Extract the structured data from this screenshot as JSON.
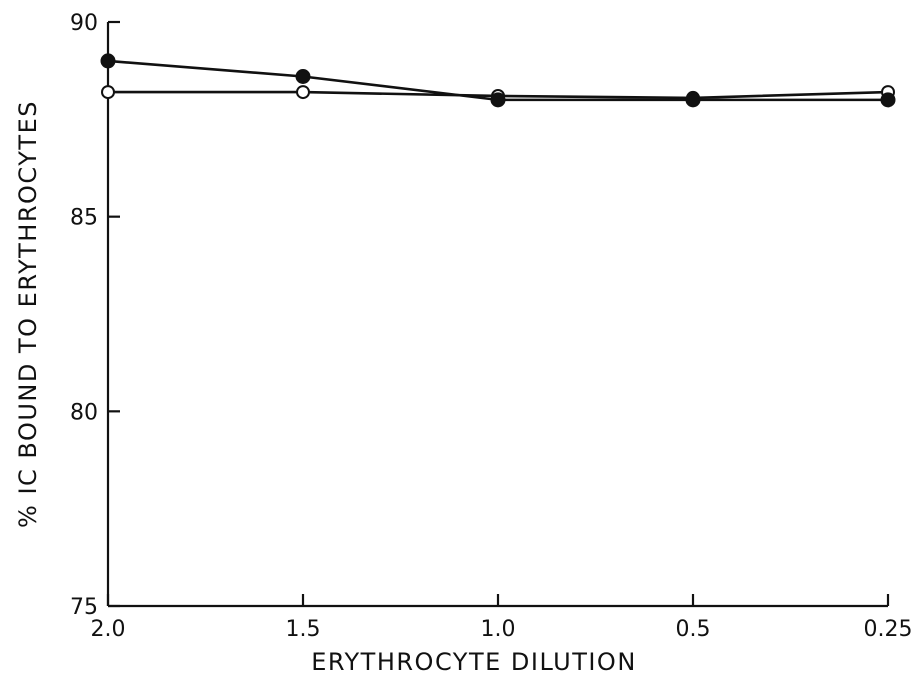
{
  "chart_data": {
    "type": "line",
    "title": "",
    "xlabel": "ERYTHROCYTE DILUTION",
    "ylabel": "% IC BOUND TO ERYTHROCYTES",
    "x": [
      2.0,
      1.5,
      1.0,
      0.5,
      0.25
    ],
    "x_tick_labels": [
      "2.0",
      "1.5",
      "1.0",
      "0.5",
      "0.25"
    ],
    "y_ticks": [
      75,
      80,
      85,
      90
    ],
    "y_tick_labels": [
      "75",
      "80",
      "85",
      "90"
    ],
    "ylim": [
      75,
      90
    ],
    "grid": false,
    "legend": "none",
    "series": [
      {
        "marker": "filled-circle",
        "color": "#111111",
        "values": [
          89.0,
          88.6,
          88.0,
          88.0,
          88.0
        ]
      },
      {
        "marker": "open-circle",
        "color": "#111111",
        "values": [
          88.2,
          88.2,
          88.1,
          88.05,
          88.2
        ]
      }
    ]
  }
}
